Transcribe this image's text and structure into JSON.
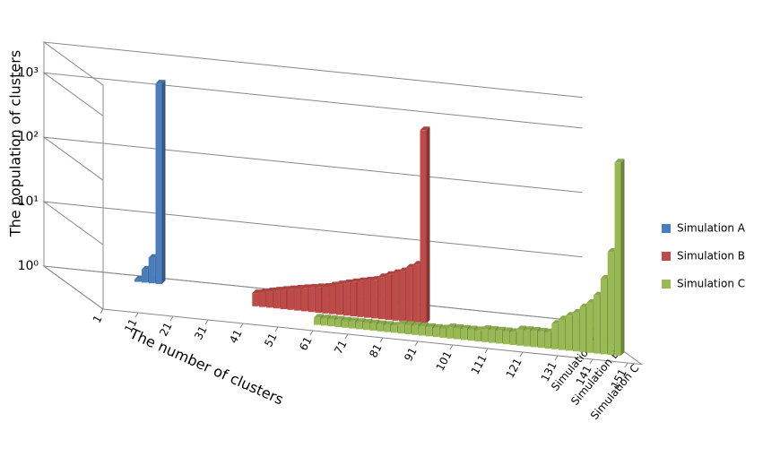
{
  "chart_data": {
    "type": "bar3d",
    "y_label": "The population of clusters",
    "x_label": "The number of clusters",
    "log_y": true,
    "grid": true,
    "legend": "right",
    "xlim": [
      1,
      151
    ],
    "xticks": [
      1,
      11,
      21,
      31,
      41,
      51,
      61,
      71,
      81,
      91,
      101,
      111,
      121,
      131,
      141,
      151
    ],
    "ylim": [
      1,
      3000
    ],
    "yticks": [
      {
        "value": 1,
        "label": "10⁰"
      },
      {
        "value": 10,
        "label": "10¹"
      },
      {
        "value": 100,
        "label": "10²"
      },
      {
        "value": 1000,
        "label": "10³"
      }
    ],
    "series": [
      {
        "name": "Simulation A",
        "color": "#4a7ebb",
        "x": [
          25,
          27,
          29,
          31
        ],
        "values": [
          1.1,
          1.6,
          2.5,
          1300
        ]
      },
      {
        "name": "Simulation B",
        "color": "#be4b48",
        "x": [
          53,
          55,
          57,
          59,
          61,
          63,
          65,
          67,
          69,
          71,
          73,
          75,
          77,
          79,
          81,
          83,
          85,
          87,
          89,
          91,
          93,
          95,
          97,
          99,
          101
        ],
        "values": [
          1.6,
          1.7,
          1.8,
          1.9,
          2,
          2.1,
          2.2,
          2.3,
          2.4,
          2.5,
          2.6,
          2.8,
          3,
          3.2,
          3.4,
          3.6,
          3.8,
          4,
          4.5,
          5,
          5.5,
          6,
          7,
          8,
          1000
        ]
      },
      {
        "name": "Simulation C",
        "color": "#98b954",
        "x": [
          65,
          67,
          69,
          71,
          73,
          75,
          77,
          79,
          81,
          83,
          85,
          87,
          89,
          91,
          93,
          95,
          97,
          99,
          101,
          103,
          105,
          107,
          109,
          111,
          113,
          115,
          117,
          119,
          121,
          123,
          125,
          127,
          129,
          131,
          133,
          135,
          137,
          139,
          141,
          143,
          145,
          147,
          149,
          151
        ],
        "values": [
          1.3,
          1.3,
          1.3,
          1.3,
          1.3,
          1.3,
          1.3,
          1.3,
          1.3,
          1.3,
          1.3,
          1.3,
          1.4,
          1.4,
          1.4,
          1.4,
          1.4,
          1.4,
          1.4,
          1.5,
          1.5,
          1.5,
          1.5,
          1.5,
          1.6,
          1.6,
          1.6,
          1.6,
          1.6,
          1.8,
          1.8,
          1.8,
          1.8,
          1.8,
          2.5,
          3,
          3.5,
          4,
          5,
          6,
          8,
          15,
          40,
          1000
        ]
      }
    ]
  }
}
